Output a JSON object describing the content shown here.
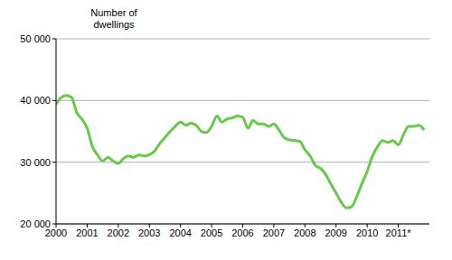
{
  "chart_data": {
    "type": "line",
    "y_label": "Number of dwellings",
    "x": [
      2000.0,
      2000.17,
      2000.33,
      2000.5,
      2000.67,
      2000.83,
      2001.0,
      2001.17,
      2001.33,
      2001.5,
      2001.67,
      2001.83,
      2002.0,
      2002.17,
      2002.33,
      2002.5,
      2002.67,
      2002.83,
      2003.0,
      2003.17,
      2003.33,
      2003.5,
      2003.67,
      2003.83,
      2004.0,
      2004.17,
      2004.33,
      2004.5,
      2004.67,
      2004.83,
      2005.0,
      2005.17,
      2005.33,
      2005.5,
      2005.67,
      2005.83,
      2006.0,
      2006.17,
      2006.33,
      2006.5,
      2006.67,
      2006.83,
      2007.0,
      2007.17,
      2007.33,
      2007.5,
      2007.67,
      2007.83,
      2008.0,
      2008.17,
      2008.33,
      2008.5,
      2008.67,
      2008.83,
      2009.0,
      2009.17,
      2009.33,
      2009.5,
      2009.67,
      2009.83,
      2010.0,
      2010.17,
      2010.33,
      2010.5,
      2010.67,
      2010.83,
      2011.0,
      2011.17,
      2011.33,
      2011.5,
      2011.67,
      2011.83
    ],
    "values": [
      39400,
      40500,
      40800,
      40500,
      38000,
      37000,
      35500,
      32500,
      31200,
      30200,
      30800,
      30200,
      29800,
      30600,
      31000,
      30800,
      31200,
      31000,
      31200,
      31800,
      33000,
      34000,
      35000,
      35800,
      36500,
      36000,
      36300,
      36000,
      35000,
      34800,
      35800,
      37500,
      36500,
      37000,
      37200,
      37500,
      37300,
      35500,
      36800,
      36200,
      36200,
      35800,
      36200,
      35200,
      34000,
      33600,
      33500,
      33400,
      32000,
      31000,
      29500,
      29000,
      28000,
      26500,
      25000,
      23500,
      22600,
      22800,
      24500,
      26500,
      28500,
      31000,
      32500,
      33500,
      33200,
      33500,
      32800,
      34500,
      35800,
      35800,
      36000,
      35200
    ],
    "color": "#66c94a",
    "xlim": [
      2000,
      2012
    ],
    "xticks": [
      2000,
      2001,
      2002,
      2003,
      2004,
      2005,
      2006,
      2007,
      2008,
      2009,
      2010,
      {
        "value": 2011,
        "label": "2011*"
      }
    ],
    "ylim": [
      20000,
      50000
    ],
    "yticks": [
      {
        "value": 20000,
        "label": "20 000"
      },
      {
        "value": 30000,
        "label": "30 000"
      },
      {
        "value": 40000,
        "label": "40 000"
      },
      {
        "value": 50000,
        "label": "50 000"
      }
    ],
    "grid": true
  }
}
